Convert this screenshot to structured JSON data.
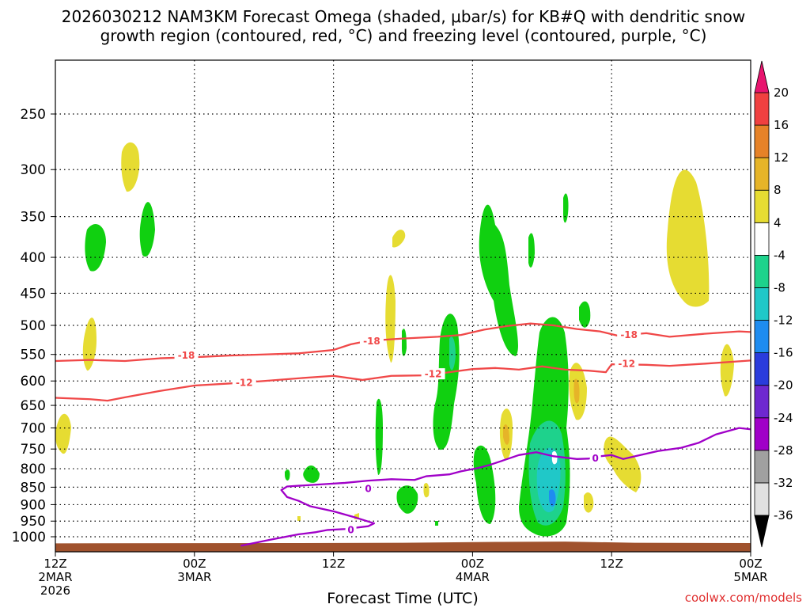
{
  "chart_data": {
    "type": "time-height cross section",
    "title_line1": "2026030212 NAM3KM Forecast Omega (shaded, μbar/s) for KB#Q with dendritic snow",
    "title_line2": "growth region (contoured, red, °C) and freezing level (contoured, purple, °C)",
    "xlabel": "Forecast Time (UTC)",
    "credit": "coolwx.com/models",
    "x_range_hours": [
      0,
      60
    ],
    "x_ticks": [
      {
        "hour": 0,
        "lines": [
          "12Z",
          "2MAR",
          "2026"
        ]
      },
      {
        "hour": 12,
        "lines": [
          "00Z",
          "3MAR"
        ]
      },
      {
        "hour": 24,
        "lines": [
          "12Z"
        ]
      },
      {
        "hour": 36,
        "lines": [
          "00Z",
          "4MAR"
        ]
      },
      {
        "hour": 48,
        "lines": [
          "12Z"
        ]
      },
      {
        "hour": 60,
        "lines": [
          "00Z",
          "5MAR"
        ]
      }
    ],
    "y_ticks_hpa": [
      {
        "p": 250,
        "label": "250"
      },
      {
        "p": 300,
        "label": "300"
      },
      {
        "p": 350,
        "label": "350"
      },
      {
        "p": 400,
        "label": "400"
      },
      {
        "p": 450,
        "label": "450"
      },
      {
        "p": 500,
        "label": "500"
      },
      {
        "p": 550,
        "label": "550"
      },
      {
        "p": 600,
        "label": "600"
      },
      {
        "p": 650,
        "label": "650"
      },
      {
        "p": 700,
        "label": "700"
      },
      {
        "p": 750,
        "label": "750"
      },
      {
        "p": 800,
        "label": "800"
      },
      {
        "p": 850,
        "label": "850"
      },
      {
        "p": 900,
        "label": "900"
      },
      {
        "p": 950,
        "label": "950"
      },
      {
        "p": 1000,
        "label": "1000"
      }
    ],
    "colorbar": [
      {
        "color": "#e0e0e0",
        "label": "-36"
      },
      {
        "color": "#a0a0a0",
        "label": "-32"
      },
      {
        "color": "#a000c8",
        "label": "-28"
      },
      {
        "color": "#6e28d0",
        "label": "-24"
      },
      {
        "color": "#2a3cdc",
        "label": "-20"
      },
      {
        "color": "#1e8cf0",
        "label": "-16"
      },
      {
        "color": "#20c8c8",
        "label": "-12"
      },
      {
        "color": "#1ed28c",
        "label": "-8"
      },
      {
        "color": "#10d010",
        "label": "-4"
      },
      {
        "color": "#ffffff",
        "label": "4"
      },
      {
        "color": "#e6dc32",
        "label": "8"
      },
      {
        "color": "#e6b428",
        "label": "12"
      },
      {
        "color": "#e68228",
        "label": "16"
      },
      {
        "color": "#f04040",
        "label": "20"
      }
    ],
    "colorbar_top_color": "#e8146e",
    "colorbar_bottom_color": "#000000",
    "terrain_color": "#a0522d",
    "dgz_contours": [
      {
        "name": "minus-18-contour",
        "value": -18,
        "label": "-18",
        "color": "#f04848",
        "points": [
          [
            0,
            562
          ],
          [
            3,
            560
          ],
          [
            6,
            562
          ],
          [
            9,
            557
          ],
          [
            12,
            555
          ],
          [
            15,
            552
          ],
          [
            18,
            550
          ],
          [
            21,
            548
          ],
          [
            24,
            542
          ],
          [
            25.5,
            532
          ],
          [
            27,
            526
          ],
          [
            30,
            522
          ],
          [
            33,
            519
          ],
          [
            35,
            516
          ],
          [
            37,
            507
          ],
          [
            39,
            501
          ],
          [
            41,
            497
          ],
          [
            43,
            500
          ],
          [
            45,
            506
          ],
          [
            47,
            510
          ],
          [
            48.5,
            517
          ],
          [
            51,
            513
          ],
          [
            53,
            519
          ],
          [
            56,
            514
          ],
          [
            59,
            510
          ],
          [
            60,
            511
          ]
        ],
        "labels": [
          {
            "hour": 11.3,
            "p": 551
          },
          {
            "hour": 27.3,
            "p": 526
          },
          {
            "hour": 49.5,
            "p": 515
          }
        ]
      },
      {
        "name": "minus-12-contour",
        "value": -12,
        "label": "-12",
        "color": "#f04848",
        "points": [
          [
            0,
            634
          ],
          [
            3,
            637
          ],
          [
            4.5,
            640
          ],
          [
            6,
            633
          ],
          [
            9,
            620
          ],
          [
            12,
            609
          ],
          [
            15,
            605
          ],
          [
            18,
            600
          ],
          [
            22,
            593
          ],
          [
            24,
            590
          ],
          [
            26.5,
            598
          ],
          [
            29,
            590
          ],
          [
            32,
            589
          ],
          [
            34,
            583
          ],
          [
            36,
            577
          ],
          [
            38,
            575
          ],
          [
            40,
            578
          ],
          [
            42,
            572
          ],
          [
            44,
            578
          ],
          [
            46,
            580
          ],
          [
            47.5,
            583
          ],
          [
            48,
            568
          ],
          [
            51,
            569
          ],
          [
            53,
            571
          ],
          [
            56,
            567
          ],
          [
            60,
            561
          ]
        ],
        "labels": [
          {
            "hour": 16.3,
            "p": 603
          },
          {
            "hour": 32.6,
            "p": 586
          },
          {
            "hour": 49.3,
            "p": 566
          }
        ]
      },
      {
        "name": "freezing-level-contour",
        "value": 0,
        "label": "0",
        "color": "#a000c8",
        "points": [
          [
            16,
            1030
          ],
          [
            18.5,
            1010
          ],
          [
            21,
            992
          ],
          [
            22.5,
            985
          ],
          [
            23.5,
            978
          ],
          [
            25,
            975
          ],
          [
            27,
            966
          ],
          [
            27.5,
            957
          ],
          [
            26,
            940
          ],
          [
            24,
            920
          ],
          [
            22,
            905
          ],
          [
            21,
            889
          ],
          [
            20,
            878
          ],
          [
            19.5,
            858
          ],
          [
            20,
            848
          ],
          [
            21,
            846
          ],
          [
            23,
            842
          ],
          [
            25,
            838
          ],
          [
            27,
            832
          ],
          [
            29,
            828
          ],
          [
            31,
            830
          ],
          [
            32,
            820
          ],
          [
            34,
            815
          ],
          [
            35,
            807
          ],
          [
            36.5,
            798
          ],
          [
            37.5,
            790
          ],
          [
            38.5,
            780
          ],
          [
            40,
            765
          ],
          [
            41.5,
            758
          ],
          [
            43,
            768
          ],
          [
            45,
            775
          ],
          [
            46,
            774
          ],
          [
            47,
            768
          ],
          [
            48,
            765
          ],
          [
            49,
            775
          ],
          [
            50,
            768
          ],
          [
            52,
            755
          ],
          [
            54,
            747
          ],
          [
            55.5,
            735
          ],
          [
            57,
            715
          ],
          [
            59,
            700
          ],
          [
            60,
            703
          ]
        ],
        "labels": [
          {
            "hour": 27,
            "p": 853
          },
          {
            "hour": 25.5,
            "p": 977
          },
          {
            "hour": 46.6,
            "p": 772
          }
        ]
      }
    ],
    "terrain_profile_hpa": [
      [
        0,
        1022
      ],
      [
        20,
        1021
      ],
      [
        30,
        1020
      ],
      [
        38,
        1017
      ],
      [
        44,
        1016
      ],
      [
        50,
        1020
      ],
      [
        60,
        1021
      ]
    ]
  }
}
